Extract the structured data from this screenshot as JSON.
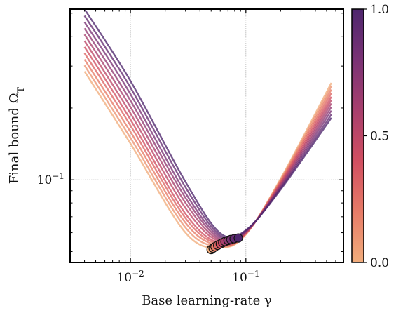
{
  "chart_data": {
    "type": "line",
    "xlabel": "Base learning-rate γ",
    "ylabel": "Final bound Ω_T",
    "x_scale": "log",
    "y_scale": "log",
    "xlim": [
      0.003,
      0.7
    ],
    "ylim": [
      0.045,
      0.52
    ],
    "x_ticks": [
      {
        "value": 0.01,
        "label": "10^−2"
      },
      {
        "value": 0.1,
        "label": "10^−1"
      }
    ],
    "y_ticks": [
      {
        "value": 0.1,
        "label": "10^−1"
      }
    ],
    "grid": true,
    "colorbar": {
      "ticks": [
        {
          "value": 0.0,
          "label": "0.0"
        },
        {
          "value": 0.5,
          "label": "0.5"
        },
        {
          "value": 1.0,
          "label": "1.0"
        }
      ],
      "colors": [
        "#f1ad7c",
        "#e77b67",
        "#d14f61",
        "#a83f6d",
        "#7a3275",
        "#4e266d"
      ]
    },
    "curve_x": [
      0.004,
      0.01,
      0.03,
      0.06,
      0.1,
      0.2,
      0.55
    ],
    "series": [
      {
        "param": 0.0,
        "y": [
          0.285,
          0.142,
          0.06,
          0.052,
          0.059,
          0.101,
          0.255
        ],
        "min_x": 0.05,
        "min_y": 0.051
      },
      {
        "param": 0.1,
        "y": [
          0.302,
          0.15,
          0.063,
          0.0525,
          0.0592,
          0.1,
          0.247
        ],
        "min_x": 0.052,
        "min_y": 0.0517
      },
      {
        "param": 0.2,
        "y": [
          0.32,
          0.159,
          0.066,
          0.053,
          0.0594,
          0.099,
          0.239
        ],
        "min_x": 0.054,
        "min_y": 0.0524
      },
      {
        "param": 0.3,
        "y": [
          0.34,
          0.169,
          0.069,
          0.0535,
          0.0596,
          0.098,
          0.231
        ],
        "min_x": 0.057,
        "min_y": 0.0531
      },
      {
        "param": 0.4,
        "y": [
          0.361,
          0.179,
          0.072,
          0.054,
          0.0598,
          0.097,
          0.223
        ],
        "min_x": 0.06,
        "min_y": 0.0538
      },
      {
        "param": 0.5,
        "y": [
          0.383,
          0.19,
          0.076,
          0.0548,
          0.06,
          0.096,
          0.216
        ],
        "min_x": 0.063,
        "min_y": 0.0545
      },
      {
        "param": 0.6,
        "y": [
          0.407,
          0.202,
          0.08,
          0.0556,
          0.0603,
          0.095,
          0.209
        ],
        "min_x": 0.066,
        "min_y": 0.0551
      },
      {
        "param": 0.7,
        "y": [
          0.432,
          0.215,
          0.084,
          0.0565,
          0.0606,
          0.094,
          0.202
        ],
        "min_x": 0.07,
        "min_y": 0.0557
      },
      {
        "param": 0.8,
        "y": [
          0.459,
          0.229,
          0.088,
          0.0575,
          0.0609,
          0.093,
          0.195
        ],
        "min_x": 0.074,
        "min_y": 0.0562
      },
      {
        "param": 0.9,
        "y": [
          0.488,
          0.244,
          0.093,
          0.0585,
          0.0612,
          0.092,
          0.188
        ],
        "min_x": 0.079,
        "min_y": 0.0566
      },
      {
        "param": 1.0,
        "y": [
          0.52,
          0.26,
          0.098,
          0.0597,
          0.0615,
          0.091,
          0.182
        ],
        "min_x": 0.086,
        "min_y": 0.057
      }
    ]
  }
}
